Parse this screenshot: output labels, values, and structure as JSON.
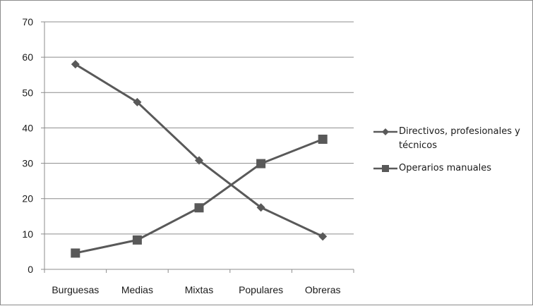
{
  "chart_data": {
    "type": "line",
    "categories": [
      "Burguesas",
      "Medias",
      "Mixtas",
      "Populares",
      "Obreras"
    ],
    "series": [
      {
        "name": "Directivos, profesionales y técnicos",
        "values": [
          58,
          47.3,
          30.8,
          17.5,
          9.3
        ],
        "color": "#595959",
        "marker": "diamond"
      },
      {
        "name": "Operarios manuales",
        "values": [
          4.6,
          8.3,
          17.4,
          29.9,
          36.8
        ],
        "color": "#595959",
        "marker": "square"
      }
    ],
    "ylim": [
      0,
      70
    ],
    "yticks": [
      "0",
      "10",
      "20",
      "30",
      "40",
      "50",
      "60",
      "70"
    ],
    "grid": true,
    "legend_position": "right",
    "xlabel": "",
    "ylabel": ""
  }
}
